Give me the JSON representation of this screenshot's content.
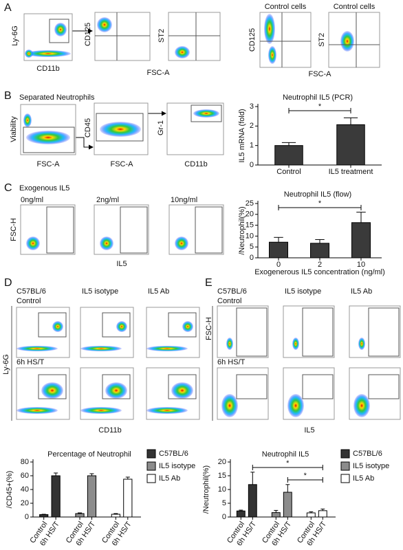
{
  "panels": {
    "a": {
      "label": "A",
      "texts": [
        "Ly-6G",
        "CD11b",
        "CD125",
        "ST2",
        "FSC-A",
        "Control cells",
        "Control cells",
        "CD125",
        "ST2",
        "FSC-A"
      ]
    },
    "b": {
      "label": "B",
      "texts": [
        "Separated Neutrophils",
        "Viability",
        "FSC-A",
        "CD45",
        "FSC-A",
        "Gr-1",
        "CD11b"
      ]
    },
    "c": {
      "label": "C",
      "texts": [
        "Exogenous IL5",
        "0ng/ml",
        "2ng/ml",
        "10ng/ml",
        "FSC-H",
        "IL5"
      ]
    },
    "d": {
      "label": "D",
      "texts": [
        "C57BL/6",
        "Control",
        "IL5 isotype",
        "IL5 Ab",
        "Ly-6G",
        "6h HS/T",
        "CD11b"
      ]
    },
    "e": {
      "label": "E",
      "texts": [
        "C57BL/6",
        "Control",
        "IL5 isotype",
        "IL5 Ab",
        "FSC-H",
        "6h HS/T",
        "IL5"
      ]
    }
  },
  "chart_data": [
    {
      "type": "bar",
      "title": "Neutrophil IL5 (PCR)",
      "y_label": "IL5 mRNA (fold)",
      "categories": [
        "Control",
        "IL5 treatment"
      ],
      "values": [
        1.0,
        2.07
      ],
      "errors": [
        0.15,
        0.35
      ],
      "color": "#3a3a3a",
      "ylim": [
        0,
        3
      ],
      "yticks": [
        0,
        1,
        2,
        3
      ],
      "annotations": [
        "*"
      ]
    },
    {
      "type": "bar",
      "title": "Neutrophil IL5 (flow)",
      "y_label": "/Neutrophil(%)",
      "x_label": "Exogenerous IL5 concentration (ng/ml)",
      "categories": [
        "0",
        "2",
        "10"
      ],
      "values": [
        7.2,
        6.7,
        16.2
      ],
      "errors": [
        2.2,
        1.7,
        4.8
      ],
      "color": "#3a3a3a",
      "ylim": [
        0,
        25
      ],
      "yticks": [
        0,
        5,
        10,
        15,
        20,
        25
      ],
      "annotations": [
        "*"
      ]
    },
    {
      "type": "grouped-bar",
      "title": "Percentage of Neutrophil",
      "y_label": "/CD45+(%)",
      "categories": [
        "Control",
        "6h HS/T"
      ],
      "series": [
        {
          "name": "C57BL/6",
          "color": "#333333",
          "values": [
            3.5,
            60
          ],
          "errors": [
            0.5,
            4
          ]
        },
        {
          "name": "IL5 isotype",
          "color": "#8c8c8c",
          "values": [
            5,
            60
          ],
          "errors": [
            1,
            3
          ]
        },
        {
          "name": "IL5 Ab",
          "color": "#ffffff",
          "values": [
            4,
            55
          ],
          "errors": [
            1,
            3
          ]
        }
      ],
      "ylim": [
        0,
        80
      ],
      "yticks": [
        0,
        20,
        40,
        60,
        80
      ],
      "annotations": []
    },
    {
      "type": "grouped-bar",
      "title": "Neutrophil IL5",
      "y_label": "/Neutrophil(%)",
      "categories": [
        "Control",
        "6h HS/T"
      ],
      "series": [
        {
          "name": "C57BL/6",
          "color": "#333333",
          "values": [
            2.2,
            11.8
          ],
          "errors": [
            0.3,
            4.5
          ]
        },
        {
          "name": "IL5 isotype",
          "color": "#8c8c8c",
          "values": [
            1.6,
            9.0
          ],
          "errors": [
            0.8,
            2.8
          ]
        },
        {
          "name": "IL5 Ab",
          "color": "#ffffff",
          "values": [
            1.5,
            2.3
          ],
          "errors": [
            0.4,
            0.6
          ]
        }
      ],
      "ylim": [
        0,
        20
      ],
      "yticks": [
        0,
        5,
        10,
        15,
        20
      ],
      "annotations": [
        "*",
        "*"
      ]
    }
  ]
}
